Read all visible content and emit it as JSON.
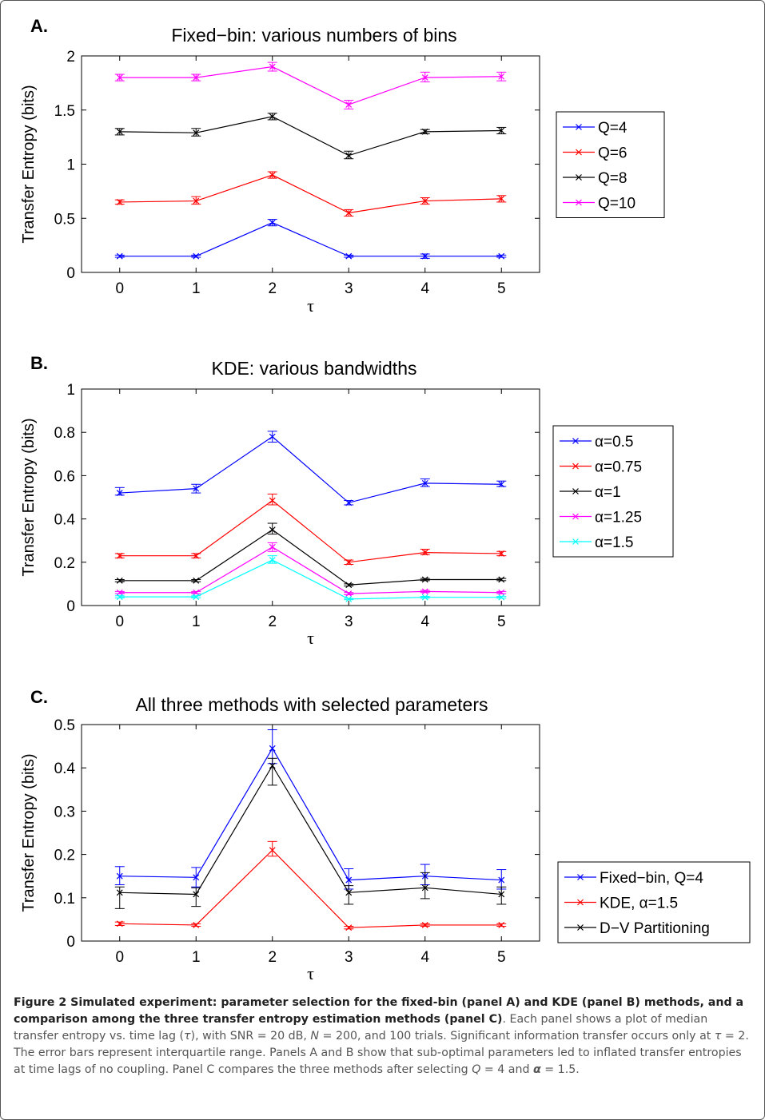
{
  "chart_data": [
    {
      "panel_label": "A.",
      "type": "line",
      "title": "Fixed−bin: various numbers of bins",
      "xlabel": "τ",
      "ylabel": "Transfer Entropy (bits)",
      "x": [
        0,
        1,
        2,
        3,
        4,
        5
      ],
      "xlim": [
        -0.5,
        5.5
      ],
      "ylim": [
        0,
        2
      ],
      "yticks": [
        0,
        0.5,
        1,
        1.5,
        2
      ],
      "ytick_labels": [
        "0",
        "0.5",
        "1",
        "1.5",
        "2"
      ],
      "xtick_labels": [
        "0",
        "1",
        "2",
        "3",
        "4",
        "5"
      ],
      "legend_position": "right",
      "series": [
        {
          "name": "Q=4",
          "color": "#0000ff",
          "values": [
            0.15,
            0.15,
            0.46,
            0.15,
            0.15,
            0.15
          ],
          "err_low": [
            0.14,
            0.14,
            0.43,
            0.14,
            0.13,
            0.14
          ],
          "err_high": [
            0.16,
            0.16,
            0.49,
            0.16,
            0.17,
            0.16
          ]
        },
        {
          "name": "Q=6",
          "color": "#ff0000",
          "values": [
            0.65,
            0.66,
            0.9,
            0.55,
            0.66,
            0.68
          ],
          "err_low": [
            0.63,
            0.63,
            0.87,
            0.52,
            0.63,
            0.65
          ],
          "err_high": [
            0.67,
            0.7,
            0.93,
            0.58,
            0.69,
            0.71
          ]
        },
        {
          "name": "Q=8",
          "color": "#000000",
          "values": [
            1.3,
            1.29,
            1.44,
            1.08,
            1.3,
            1.31
          ],
          "err_low": [
            1.27,
            1.26,
            1.41,
            1.05,
            1.28,
            1.28
          ],
          "err_high": [
            1.33,
            1.33,
            1.47,
            1.12,
            1.32,
            1.34
          ]
        },
        {
          "name": "Q=10",
          "color": "#ff00ff",
          "values": [
            1.8,
            1.8,
            1.9,
            1.55,
            1.8,
            1.81
          ],
          "err_low": [
            1.77,
            1.77,
            1.86,
            1.51,
            1.76,
            1.77
          ],
          "err_high": [
            1.83,
            1.83,
            1.94,
            1.59,
            1.85,
            1.85
          ]
        }
      ]
    },
    {
      "panel_label": "B.",
      "type": "line",
      "title": "KDE: various bandwidths",
      "xlabel": "τ",
      "ylabel": "Transfer Entropy (bits)",
      "x": [
        0,
        1,
        2,
        3,
        4,
        5
      ],
      "xlim": [
        -0.5,
        5.5
      ],
      "ylim": [
        0,
        1
      ],
      "yticks": [
        0,
        0.2,
        0.4,
        0.6,
        0.8,
        1
      ],
      "ytick_labels": [
        "0",
        "0.2",
        "0.4",
        "0.6",
        "0.8",
        "1"
      ],
      "xtick_labels": [
        "0",
        "1",
        "2",
        "3",
        "4",
        "5"
      ],
      "legend_position": "right",
      "series": [
        {
          "name": "α=0.5",
          "color": "#0000ff",
          "values": [
            0.52,
            0.54,
            0.78,
            0.475,
            0.565,
            0.56
          ],
          "err_low": [
            0.51,
            0.52,
            0.755,
            0.465,
            0.55,
            0.55
          ],
          "err_high": [
            0.545,
            0.56,
            0.805,
            0.485,
            0.585,
            0.575
          ]
        },
        {
          "name": "α=0.75",
          "color": "#ff0000",
          "values": [
            0.23,
            0.23,
            0.485,
            0.2,
            0.245,
            0.24
          ],
          "err_low": [
            0.22,
            0.22,
            0.465,
            0.19,
            0.235,
            0.23
          ],
          "err_high": [
            0.24,
            0.24,
            0.515,
            0.21,
            0.26,
            0.25
          ]
        },
        {
          "name": "α=1",
          "color": "#000000",
          "values": [
            0.115,
            0.115,
            0.35,
            0.095,
            0.12,
            0.12
          ],
          "err_low": [
            0.11,
            0.11,
            0.33,
            0.09,
            0.115,
            0.115
          ],
          "err_high": [
            0.12,
            0.12,
            0.38,
            0.1,
            0.125,
            0.125
          ]
        },
        {
          "name": "α=1.25",
          "color": "#ff00ff",
          "values": [
            0.06,
            0.06,
            0.27,
            0.055,
            0.065,
            0.06
          ],
          "err_low": [
            0.055,
            0.055,
            0.25,
            0.05,
            0.06,
            0.055
          ],
          "err_high": [
            0.065,
            0.065,
            0.29,
            0.06,
            0.07,
            0.065
          ]
        },
        {
          "name": "α=1.5",
          "color": "#00ffff",
          "values": [
            0.04,
            0.04,
            0.21,
            0.03,
            0.038,
            0.038
          ],
          "err_low": [
            0.035,
            0.035,
            0.195,
            0.027,
            0.034,
            0.034
          ],
          "err_high": [
            0.045,
            0.045,
            0.23,
            0.033,
            0.042,
            0.042
          ]
        }
      ]
    },
    {
      "panel_label": "C.",
      "type": "line",
      "title": "All three methods with selected parameters",
      "xlabel": "τ",
      "ylabel": "Transfer Entropy (bits)",
      "x": [
        0,
        1,
        2,
        3,
        4,
        5
      ],
      "xlim": [
        -0.5,
        5.5
      ],
      "ylim": [
        0,
        0.5
      ],
      "yticks": [
        0,
        0.1,
        0.2,
        0.3,
        0.4,
        0.5
      ],
      "ytick_labels": [
        "0",
        "0.1",
        "0.2",
        "0.3",
        "0.4",
        "0.5"
      ],
      "xtick_labels": [
        "0",
        "1",
        "2",
        "3",
        "4",
        "5"
      ],
      "legend_position": "right",
      "series": [
        {
          "name": "Fixed−bin, Q=4",
          "color": "#0000ff",
          "values": [
            0.15,
            0.147,
            0.445,
            0.141,
            0.15,
            0.141
          ],
          "err_low": [
            0.13,
            0.125,
            0.41,
            0.12,
            0.13,
            0.12
          ],
          "err_high": [
            0.172,
            0.17,
            0.488,
            0.167,
            0.177,
            0.165
          ]
        },
        {
          "name": "KDE, α=1.5",
          "color": "#ff0000",
          "values": [
            0.04,
            0.037,
            0.21,
            0.031,
            0.037,
            0.037
          ],
          "err_low": [
            0.036,
            0.034,
            0.196,
            0.028,
            0.034,
            0.034
          ],
          "err_high": [
            0.044,
            0.04,
            0.23,
            0.034,
            0.04,
            0.04
          ]
        },
        {
          "name": "D−V Partitioning",
          "color": "#000000",
          "values": [
            0.112,
            0.108,
            0.405,
            0.112,
            0.123,
            0.108
          ],
          "err_low": [
            0.075,
            0.08,
            0.36,
            0.085,
            0.098,
            0.085
          ],
          "err_high": [
            0.125,
            0.123,
            0.422,
            0.128,
            0.158,
            0.125
          ]
        }
      ]
    }
  ],
  "caption": {
    "bold": "Figure 2 Simulated experiment: parameter selection for the fixed-bin (panel A) and KDE (panel B) methods, and a comparison among the three transfer entropy estimation methods (panel C)",
    "text_1": ". Each panel shows a plot of median transfer entropy vs. time lag (",
    "tau_symbol": "τ",
    "text_2": "), with SNR = 20 dB, ",
    "n_symbol": "N",
    "text_3": " = 200, and 100 trials. Significant information transfer occurs only at ",
    "tau_symbol_2": "τ",
    "text_4": " = 2. The error bars represent interquartile range. Panels A and B show that sub-optimal parameters led to inflated transfer entropies at time lags of no coupling. Panel C compares the three methods after selecting ",
    "q_symbol": "Q",
    "text_5": " = 4 and ",
    "alpha_symbol": "α",
    "text_6": " = 1.5."
  }
}
